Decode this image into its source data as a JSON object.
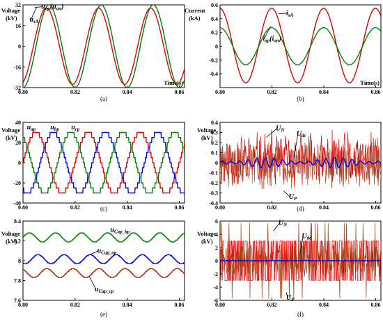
{
  "chart_data": [
    {
      "panel": "(a)",
      "type": "line",
      "ylabel": "Voltage",
      "yunit": "(kV)",
      "xlabel": "Time(s)",
      "ylim": [
        -32,
        32
      ],
      "xlim": [
        0.8,
        0.862
      ],
      "yticks": [
        "32",
        "16",
        "0",
        "-16",
        "-32"
      ],
      "ytick_values": [
        32,
        16,
        0,
        -16,
        -32
      ],
      "xticks": [
        "0.80",
        "0.82",
        "0.84",
        "0.86"
      ],
      "xtick_values": [
        0.8,
        0.82,
        0.84,
        0.86
      ],
      "series": [
        {
          "kind": "sine",
          "color": "#dd0000",
          "amplitude": 29.5,
          "offset": 0,
          "freq": 50,
          "phase": 0.004
        },
        {
          "kind": "sine",
          "color": "#008000",
          "amplitude": 32,
          "offset": 0,
          "freq": 50,
          "phase": 0.005
        }
      ],
      "annotations": [
        {
          "main": "u",
          "sub": "ap",
          "paren": "(",
          "main2": "u",
          "sub2": "an",
          "close": ")",
          "tx": 0.807,
          "ty": 29,
          "ax": 0.8045,
          "ay": 30
        },
        {
          "main": "u",
          "sub": "sA",
          "tx": 0.8025,
          "ty": 19,
          "ax": 0.8052,
          "ay": 30
        }
      ]
    },
    {
      "panel": "(b)",
      "type": "line",
      "ylabel": "Current",
      "yunit": "(kA)",
      "xlabel": "Time(s)",
      "ylim": [
        -0.6,
        0.6
      ],
      "xlim": [
        0.8,
        0.862
      ],
      "yticks": [
        "0.6",
        "0.4",
        "0.2",
        "0",
        "-0.2",
        "-0.4"
      ],
      "ytick_values": [
        0.6,
        0.4,
        0.2,
        0,
        -0.2,
        -0.4
      ],
      "xticks": [
        "0.80",
        "0.82",
        "0.84",
        "0.86"
      ],
      "xtick_values": [
        0.8,
        0.82,
        0.84,
        0.86
      ],
      "series": [
        {
          "kind": "sine",
          "color": "#dd0000",
          "amplitude": 0.54,
          "offset": 0.01,
          "freq": 50,
          "phase": 0.0149
        },
        {
          "kind": "sine",
          "color": "#008000",
          "amplitude": 0.27,
          "offset": 0,
          "freq": 50,
          "phase": 0.0149
        }
      ],
      "annotations": [
        {
          "main": "i",
          "sub": "sA",
          "tx": 0.8255,
          "ty": 0.45,
          "ax": 0.8225,
          "ay": 0.47
        },
        {
          "main": "i",
          "sub": "ap",
          "paren": "(",
          "main2": "i",
          "sub2": "an",
          "close": ")",
          "tx": 0.8165,
          "ty": 0.08,
          "ax": 0.8195,
          "ay": 0.29
        }
      ]
    },
    {
      "panel": "(c)",
      "type": "line",
      "ylabel": "Voltage",
      "yunit": "(kV)",
      "xlabel": "",
      "ylim": [
        -40,
        40
      ],
      "xlim": [
        0.8,
        0.862
      ],
      "yticks": [
        "40",
        "20",
        "0",
        "-20",
        "-40"
      ],
      "ytick_values": [
        40,
        20,
        0,
        -20,
        -40
      ],
      "xticks": [
        "0.80",
        "0.82",
        "0.84",
        "0.86"
      ],
      "xtick_values": [
        0.8,
        0.82,
        0.84,
        0.86
      ],
      "series": [
        {
          "kind": "staircase",
          "color": "#dd0000",
          "amplitude": 30,
          "offset": 0,
          "freq": 50,
          "phase": 0.0,
          "levels": 6
        },
        {
          "kind": "staircase",
          "color": "#0000ee",
          "amplitude": 30,
          "offset": 0,
          "freq": 50,
          "phase": 0.00667,
          "levels": 6
        },
        {
          "kind": "staircase",
          "color": "#008000",
          "amplitude": 30,
          "offset": 0,
          "freq": 50,
          "phase": 0.01333,
          "levels": 6
        }
      ],
      "annotations": [
        {
          "main": "u",
          "sub": "ap",
          "tx": 0.8015,
          "ty": 33,
          "ax": 0,
          "ay": 0
        },
        {
          "main": "u",
          "sub": "bp",
          "tx": 0.8105,
          "ty": 33,
          "ax": 0,
          "ay": 0
        },
        {
          "main": "u",
          "sub": "cp",
          "tx": 0.8185,
          "ty": 33,
          "ax": 0,
          "ay": 0
        }
      ]
    },
    {
      "panel": "(d)",
      "type": "line",
      "ylabel": "Voltage",
      "yunit": "(kV)",
      "xlabel": "",
      "ylim": [
        -0.4,
        0.4
      ],
      "xlim": [
        0.8,
        0.862
      ],
      "yticks": [
        "0.4",
        "0.3",
        "0.2",
        "0.1",
        "0",
        "-0.1",
        "-0.2",
        "-0.3",
        "-0.4"
      ],
      "ytick_values": [
        0.4,
        0.3,
        0.2,
        0.1,
        0,
        -0.1,
        -0.2,
        -0.3,
        -0.4
      ],
      "xticks": [
        "0.80",
        "0.82",
        "0.84",
        "0.86"
      ],
      "xtick_values": [
        0.8,
        0.82,
        0.84,
        0.86
      ],
      "series": [
        {
          "kind": "noise",
          "color": "#dd0000",
          "amplitude": 0.32,
          "offset": 0.02,
          "seed": 11
        },
        {
          "kind": "noise",
          "color": "#b05030",
          "amplitude": 0.26,
          "offset": -0.02,
          "seed": 29
        },
        {
          "kind": "ripple",
          "color": "#0000ee",
          "amplitude": 0.05,
          "offset": 0.0,
          "freq": 300
        }
      ],
      "annotations": [
        {
          "main": "U",
          "sub": "N",
          "tx": 0.8215,
          "ty": 0.32,
          "ax": 0.8178,
          "ay": 0.25
        },
        {
          "main": "U",
          "sub": "dc",
          "tx": 0.8295,
          "ty": 0.27,
          "ax": 0.8285,
          "ay": 0.05
        },
        {
          "main": "U",
          "sub": "P",
          "tx": 0.8265,
          "ty": -0.36,
          "ax": 0.8245,
          "ay": -0.28
        }
      ]
    },
    {
      "panel": "(e)",
      "type": "line",
      "ylabel": "Voltage",
      "yunit": "(kV)",
      "xlabel": "",
      "ylim": [
        7.6,
        8.4
      ],
      "xlim": [
        0.8,
        0.862
      ],
      "yticks": [
        "8.4",
        "8.2",
        "8",
        "7.8",
        "7.6"
      ],
      "ytick_values": [
        8.4,
        8.2,
        8.0,
        7.8,
        7.6
      ],
      "xticks": [
        "0.80",
        "0.82",
        "0.84",
        "0.86"
      ],
      "xtick_values": [
        0.8,
        0.82,
        0.84,
        0.86
      ],
      "series": [
        {
          "kind": "rstair",
          "color": "#008000",
          "amplitude": 0.045,
          "offset": 8.235,
          "freq": 100,
          "phase": 0.0
        },
        {
          "kind": "rstair",
          "color": "#0000ee",
          "amplitude": 0.045,
          "offset": 8.015,
          "freq": 100,
          "phase": 0.0033
        },
        {
          "kind": "rstair",
          "color": "#b03010",
          "amplitude": 0.045,
          "offset": 7.875,
          "freq": 100,
          "phase": 0.0067
        }
      ],
      "annotations": [
        {
          "main": "u",
          "sub": "Cap_bp",
          "tx": 0.8335,
          "ty": 8.29,
          "ax": 0,
          "ay": 0
        },
        {
          "main": "u",
          "sub": "Cap_ap",
          "tx": 0.8285,
          "ty": 8.08,
          "ax": 0.8255,
          "ay": 8.06
        },
        {
          "main": "u",
          "sub": "Cap_cp",
          "tx": 0.8275,
          "ty": 7.69,
          "ax": 0.8255,
          "ay": 7.84
        }
      ]
    },
    {
      "panel": "(f)",
      "type": "line",
      "ylabel": "Voltage",
      "yunit": "(kV)",
      "xlabel": "",
      "ylim": [
        -6,
        6
      ],
      "xlim": [
        0.8,
        0.862
      ],
      "yticks": [
        "6",
        "4",
        "2",
        "0",
        "-2",
        "-4",
        "-6"
      ],
      "ytick_values": [
        6,
        4,
        2,
        0,
        -2,
        -4,
        -6
      ],
      "xticks": [
        "0.80",
        "0.82",
        "0.84",
        "0.86"
      ],
      "xtick_values": [
        0.8,
        0.82,
        0.84,
        0.86
      ],
      "series": [
        {
          "kind": "pwm",
          "color": "#ee0000",
          "amplitude": 3,
          "offset": 0,
          "seed": 7
        },
        {
          "kind": "spikes",
          "color": "#a04010",
          "amplitude": 5.7,
          "offset": 0,
          "seed": 3
        },
        {
          "kind": "flat",
          "color": "#0000ee",
          "amplitude": 0.05,
          "offset": 0
        }
      ],
      "annotations": [
        {
          "main": "U",
          "sub": "N",
          "tx": 0.8225,
          "ty": 5.4,
          "ax": 0.8205,
          "ay": 4.5
        },
        {
          "main": "U",
          "sub": "dc",
          "tx": 0.8315,
          "ty": 3.4,
          "ax": 0.8305,
          "ay": 0.3
        },
        {
          "main": "U",
          "sub": "P",
          "tx": 0.8255,
          "ty": -5.9,
          "ax": 0.8255,
          "ay": -4.8
        }
      ]
    }
  ]
}
